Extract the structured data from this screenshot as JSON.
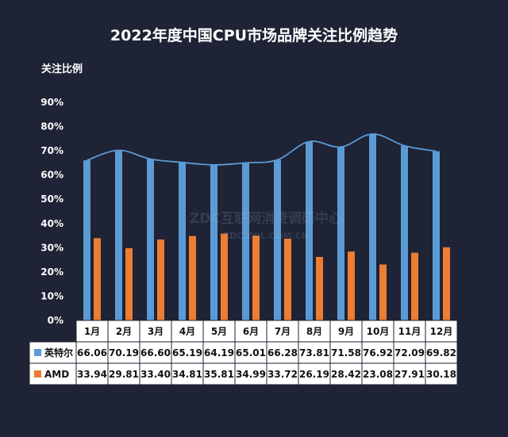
{
  "chart_data": {
    "type": "bar",
    "title": "2022年度中国CPU市场品牌关注比例趋势",
    "ylabel": "关注比例",
    "ylim": [
      0,
      90
    ],
    "yticks": [
      "0%",
      "10%",
      "20%",
      "30%",
      "40%",
      "50%",
      "60%",
      "70%",
      "80%",
      "90%"
    ],
    "categories": [
      "1月",
      "2月",
      "3月",
      "4月",
      "5月",
      "6月",
      "7月",
      "8月",
      "9月",
      "10月",
      "11月",
      "12月"
    ],
    "series": [
      {
        "name": "英特尔",
        "color": "#5b9bd5",
        "values": [
          66.06,
          70.19,
          66.6,
          65.19,
          64.19,
          65.01,
          66.28,
          73.81,
          71.58,
          76.92,
          72.09,
          69.82
        ],
        "labels": [
          "66.06",
          "70.19",
          "66.60",
          "65.19",
          "64.19",
          "65.01",
          "66.28",
          "73.81",
          "71.58",
          "76.92",
          "72.09",
          "69.82"
        ]
      },
      {
        "name": "AMD",
        "color": "#ed7d31",
        "values": [
          33.94,
          29.81,
          33.4,
          34.81,
          35.81,
          34.99,
          33.72,
          26.19,
          28.42,
          23.08,
          27.91,
          30.18
        ],
        "labels": [
          "33.94",
          "29.81",
          "33.40",
          "34.81",
          "35.81",
          "34.99",
          "33.72",
          "26.19",
          "28.42",
          "23.08",
          "27.91",
          "30.18"
        ]
      }
    ],
    "trendline": {
      "series": "英特尔",
      "color": "#5b9bd5"
    },
    "legend": "data-table",
    "grid": false
  },
  "watermark": {
    "line1": "ZDC互联网消费调研中心",
    "line2": "ZDC.ZOL.COM.CN"
  },
  "colors": {
    "background": "#1f2336",
    "table_bg": "#ffffff",
    "text": "#ffffff"
  }
}
